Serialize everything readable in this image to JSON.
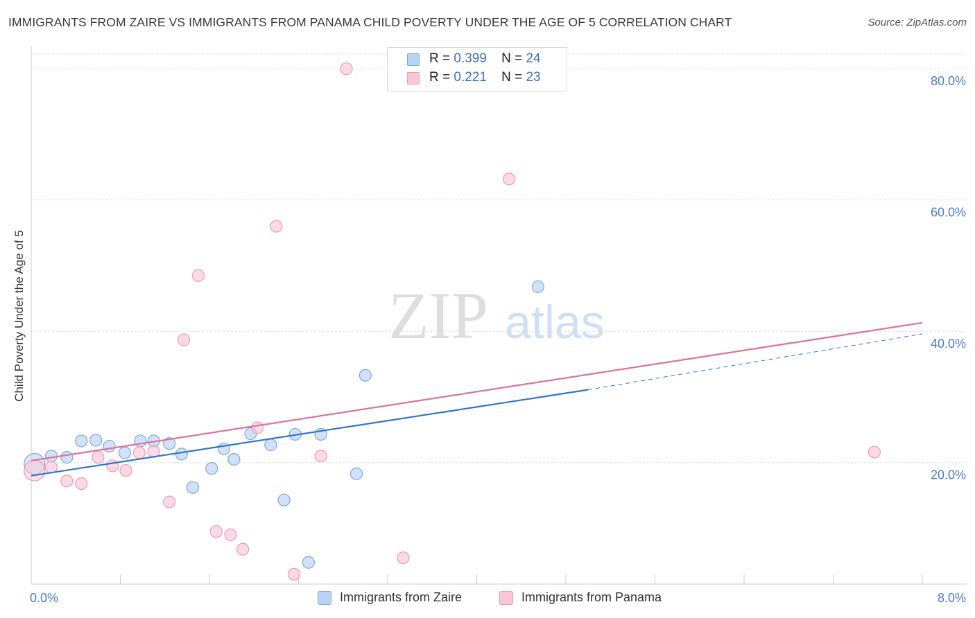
{
  "title": "IMMIGRANTS FROM ZAIRE VS IMMIGRANTS FROM PANAMA CHILD POVERTY UNDER THE AGE OF 5 CORRELATION CHART",
  "source": "Source: ZipAtlas.com",
  "watermark": {
    "zip": "ZIP",
    "atlas": "atlas"
  },
  "legend": {
    "rows": [
      {
        "r_label": "R =",
        "r_value": "0.399",
        "n_label": "N =",
        "n_value": "24"
      },
      {
        "r_label": "R =",
        "r_value": "0.221",
        "n_label": "N =",
        "n_value": "23"
      }
    ]
  },
  "colors": {
    "zaire_fill": "#b9d3f5",
    "zaire_stroke": "#7ea8df",
    "zaire_line": "#2f73cf",
    "panama_fill": "#f9c6d6",
    "panama_stroke": "#ec9ab5",
    "panama_line": "#e0709a",
    "tick": "#4a7cc9",
    "grid": "#dddddd"
  },
  "chart_data": {
    "type": "scatter",
    "xlabel": "",
    "ylabel": "Child Poverty Under the Age of 5",
    "xlim": [
      0,
      8
    ],
    "ylim": [
      1.5,
      83.5
    ],
    "x_tick_labels": [
      {
        "value": 0,
        "label": "0.0%"
      },
      {
        "value": 8,
        "label": "8.0%"
      }
    ],
    "x_minor_ticks": [
      0.8,
      1.6,
      2.4,
      3.2,
      4.0,
      4.8,
      5.6,
      6.4,
      7.2,
      8.0
    ],
    "y_ticks": [
      {
        "value": 20,
        "label": "20.0%"
      },
      {
        "value": 40,
        "label": "40.0%"
      },
      {
        "value": 60,
        "label": "60.0%"
      },
      {
        "value": 80,
        "label": "80.0%"
      }
    ],
    "grid": true,
    "legend_position": "bottom",
    "series": [
      {
        "name": "Immigrants from Zaire",
        "points": [
          {
            "x": 0.03,
            "y": 19.8,
            "big": true
          },
          {
            "x": 0.18,
            "y": 21.0
          },
          {
            "x": 0.32,
            "y": 20.8
          },
          {
            "x": 0.45,
            "y": 23.3
          },
          {
            "x": 0.58,
            "y": 23.4
          },
          {
            "x": 0.7,
            "y": 22.5
          },
          {
            "x": 0.84,
            "y": 21.5
          },
          {
            "x": 0.98,
            "y": 23.3
          },
          {
            "x": 1.1,
            "y": 23.3
          },
          {
            "x": 1.24,
            "y": 22.9
          },
          {
            "x": 1.35,
            "y": 21.3
          },
          {
            "x": 1.45,
            "y": 16.2
          },
          {
            "x": 1.62,
            "y": 19.1
          },
          {
            "x": 1.73,
            "y": 22.1
          },
          {
            "x": 1.82,
            "y": 20.5
          },
          {
            "x": 1.97,
            "y": 24.4
          },
          {
            "x": 2.15,
            "y": 22.7
          },
          {
            "x": 2.27,
            "y": 14.3
          },
          {
            "x": 2.37,
            "y": 24.3
          },
          {
            "x": 2.49,
            "y": 4.8
          },
          {
            "x": 2.6,
            "y": 24.3
          },
          {
            "x": 2.92,
            "y": 18.3
          },
          {
            "x": 3.0,
            "y": 33.3
          },
          {
            "x": 4.55,
            "y": 46.8
          }
        ],
        "trend": {
          "x0": 0.0,
          "y0": 18.0,
          "x1": 5.0,
          "y1": 31.1
        },
        "trend_ext": {
          "x0": 5.0,
          "y0": 31.1,
          "x1": 8.0,
          "y1": 39.6
        }
      },
      {
        "name": "Immigrants from Panama",
        "points": [
          {
            "x": 0.03,
            "y": 18.8,
            "big": true
          },
          {
            "x": 0.18,
            "y": 19.3
          },
          {
            "x": 0.32,
            "y": 17.2
          },
          {
            "x": 0.45,
            "y": 16.8
          },
          {
            "x": 0.6,
            "y": 20.8
          },
          {
            "x": 0.73,
            "y": 19.5
          },
          {
            "x": 0.85,
            "y": 18.8
          },
          {
            "x": 0.97,
            "y": 21.5
          },
          {
            "x": 1.1,
            "y": 21.7
          },
          {
            "x": 1.24,
            "y": 14.0
          },
          {
            "x": 1.37,
            "y": 38.7
          },
          {
            "x": 1.5,
            "y": 48.5
          },
          {
            "x": 1.66,
            "y": 9.5
          },
          {
            "x": 1.79,
            "y": 9.0
          },
          {
            "x": 1.9,
            "y": 6.8
          },
          {
            "x": 2.03,
            "y": 25.3
          },
          {
            "x": 2.2,
            "y": 56.0
          },
          {
            "x": 2.36,
            "y": 3.0
          },
          {
            "x": 2.6,
            "y": 21.0
          },
          {
            "x": 2.83,
            "y": 80.0
          },
          {
            "x": 3.34,
            "y": 5.5
          },
          {
            "x": 4.29,
            "y": 63.2
          },
          {
            "x": 7.57,
            "y": 21.6
          }
        ],
        "trend": {
          "x0": 0.0,
          "y0": 20.3,
          "x1": 8.0,
          "y1": 41.3
        }
      }
    ]
  }
}
